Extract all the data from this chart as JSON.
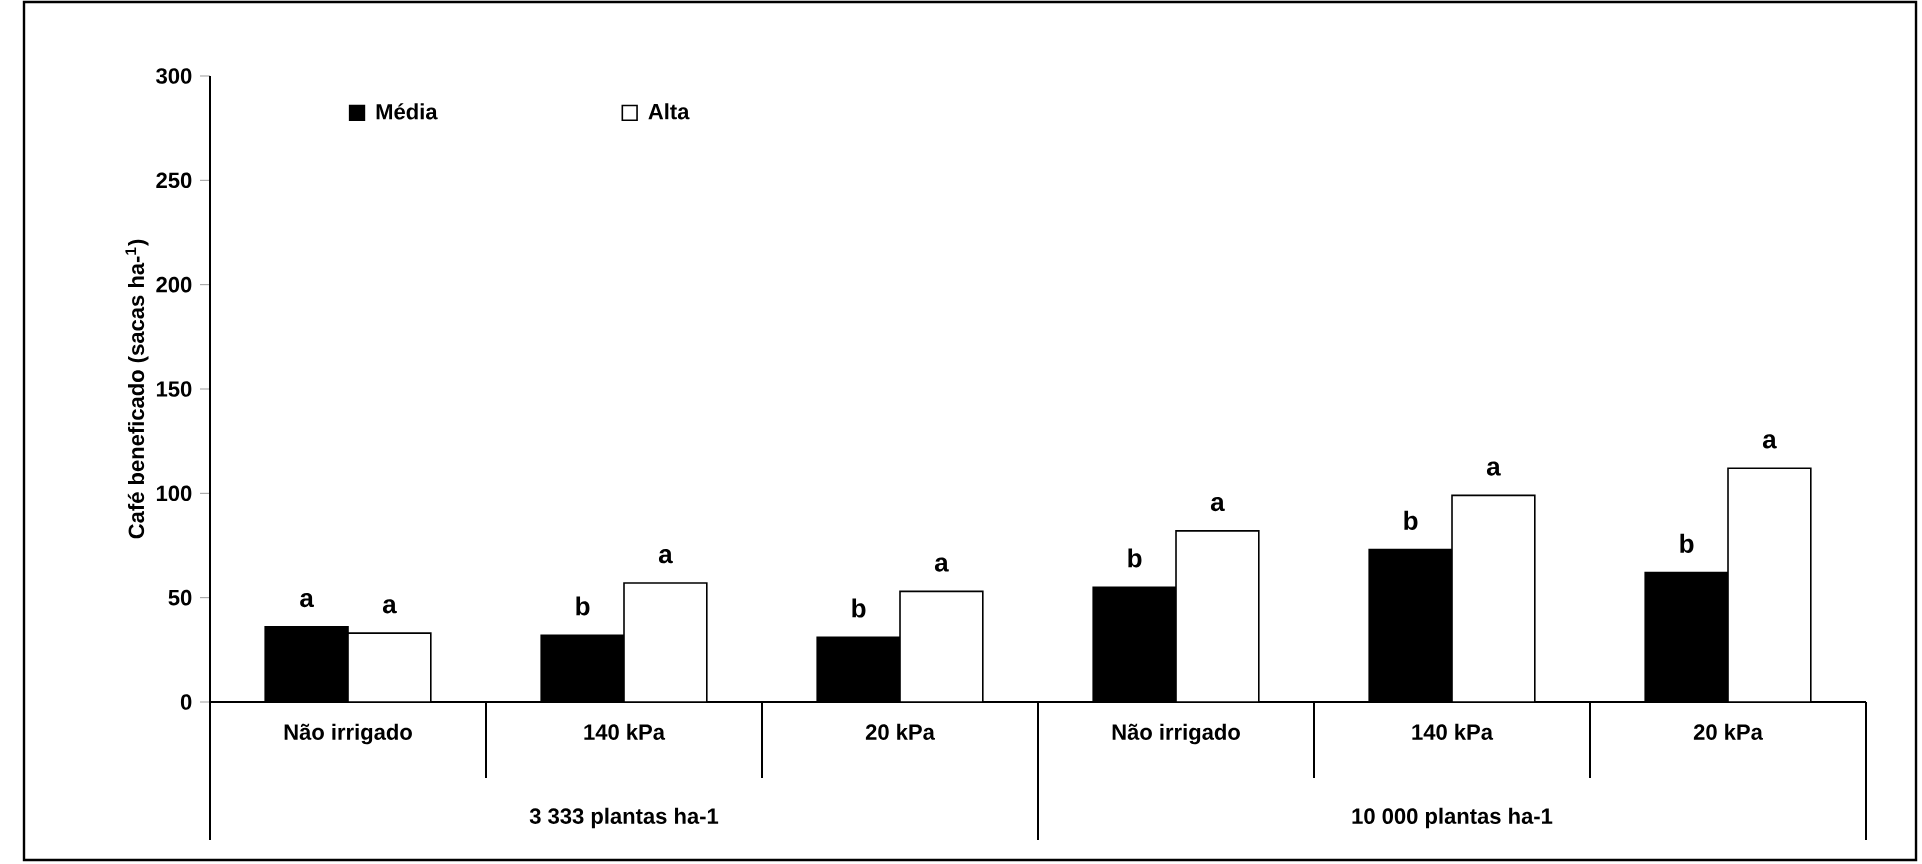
{
  "chart_data": {
    "type": "bar",
    "ylabel": "Café beneficado (sacas ha-$^{1}$)",
    "categories": [
      "Não irrigado",
      "140 kPa",
      "20 kPa",
      "Não irrigado",
      "140 kPa",
      "20 kPa"
    ],
    "series": [
      {
        "name": "Média",
        "color": "#000000",
        "values": [
          36,
          32,
          31,
          55,
          73,
          62
        ],
        "value_labels": [
          "a",
          "b",
          "b",
          "b",
          "b",
          "b"
        ]
      },
      {
        "name": "Alta",
        "color": "#ffffff",
        "values": [
          33,
          57,
          53,
          82,
          99,
          112
        ],
        "value_labels": [
          "a",
          "a",
          "a",
          "a",
          "a",
          "a"
        ]
      }
    ],
    "ylim": [
      0,
      300
    ],
    "yticks": [
      0,
      50,
      100,
      150,
      200,
      250,
      300
    ],
    "legend": "top left",
    "annotations": [
      "3 333 plantas ha-1",
      "10 000 plantas ha-1"
    ]
  }
}
